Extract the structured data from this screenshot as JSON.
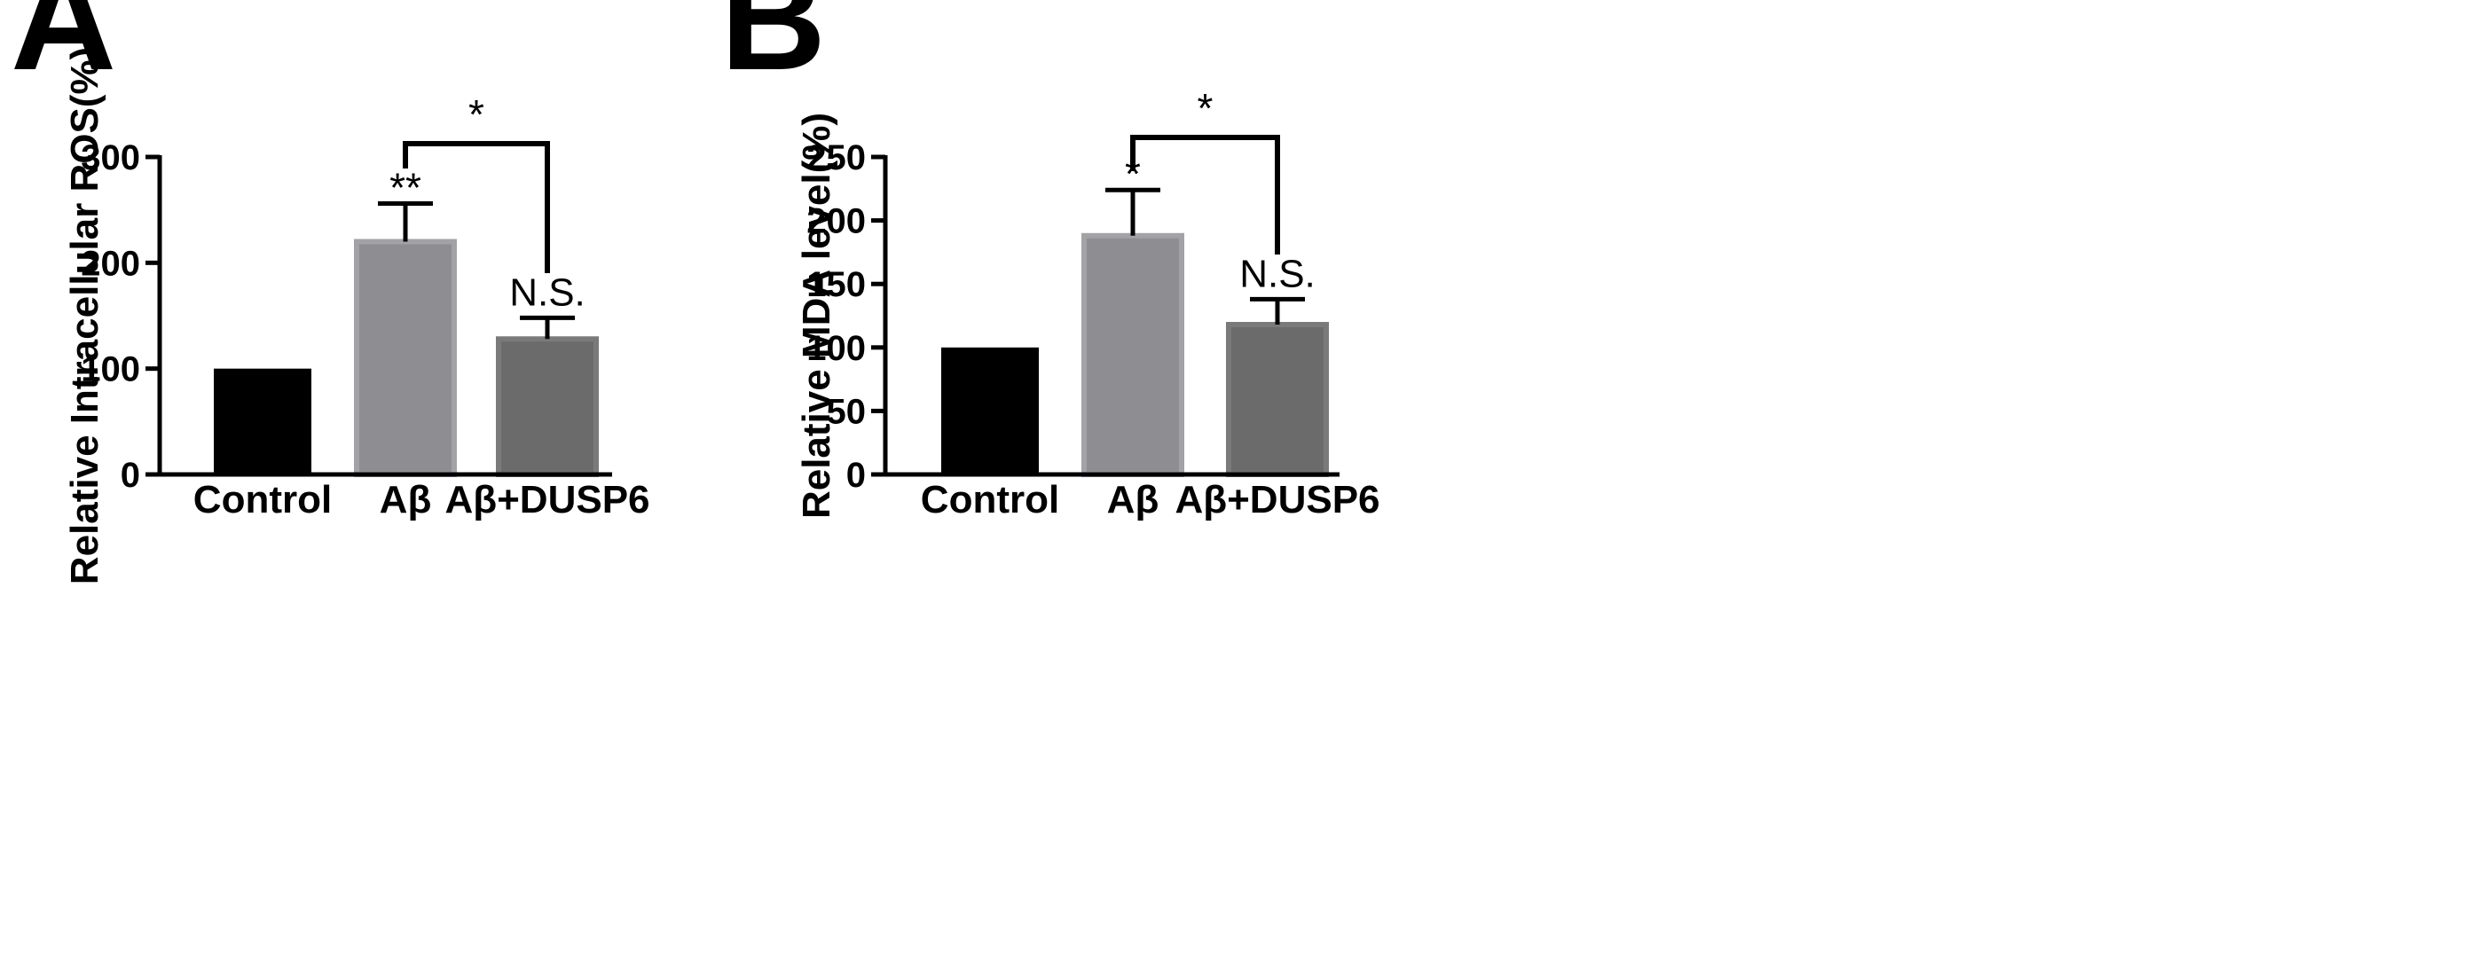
{
  "chart_data": [
    {
      "type": "bar",
      "panel_label": "A",
      "ylabel": "Relative Intracellular ROS(%)",
      "categories": [
        "Control",
        "Aβ",
        "Aβ+DUSP6"
      ],
      "values": [
        100,
        220,
        128
      ],
      "errors": [
        0,
        36,
        20
      ],
      "colors": [
        "#000000",
        "#8e8d91",
        "#6b6b6b"
      ],
      "ylim": [
        0,
        300
      ],
      "yticks": [
        0,
        100,
        200,
        300
      ],
      "grid": false,
      "annotations": [
        {
          "target": "Aβ",
          "text": "**"
        },
        {
          "target": "Aβ+DUSP6",
          "text": "N.S."
        }
      ],
      "bracket": {
        "from": "Aβ",
        "to": "Aβ+DUSP6",
        "text": "*"
      }
    },
    {
      "type": "bar",
      "panel_label": "B",
      "ylabel": "Relative MDA level(%)",
      "categories": [
        "Control",
        "Aβ",
        "Aβ+DUSP6"
      ],
      "values": [
        100,
        188,
        118
      ],
      "errors": [
        0,
        36,
        20
      ],
      "colors": [
        "#000000",
        "#8e8d91",
        "#6b6b6b"
      ],
      "ylim": [
        0,
        250
      ],
      "yticks": [
        0,
        50,
        100,
        150,
        200,
        250
      ],
      "grid": false,
      "annotations": [
        {
          "target": "Aβ",
          "text": "*"
        },
        {
          "target": "Aβ+DUSP6",
          "text": "N.S."
        }
      ],
      "bracket": {
        "from": "Aβ",
        "to": "Aβ+DUSP6",
        "text": "*"
      }
    }
  ]
}
